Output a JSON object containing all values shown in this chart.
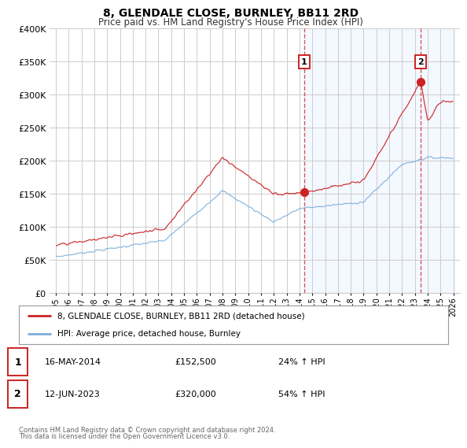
{
  "title": "8, GLENDALE CLOSE, BURNLEY, BB11 2RD",
  "subtitle": "Price paid vs. HM Land Registry's House Price Index (HPI)",
  "hpi_label": "HPI: Average price, detached house, Burnley",
  "property_label": "8, GLENDALE CLOSE, BURNLEY, BB11 2RD (detached house)",
  "red_color": "#cc2222",
  "blue_color": "#7aaedc",
  "blue_fill": "#ddeeff",
  "annotation1": {
    "num": "1",
    "date": "16-MAY-2014",
    "price": "£152,500",
    "change": "24% ↑ HPI"
  },
  "annotation2": {
    "num": "2",
    "date": "12-JUN-2023",
    "price": "£320,000",
    "change": "54% ↑ HPI"
  },
  "footnote1": "Contains HM Land Registry data © Crown copyright and database right 2024.",
  "footnote2": "This data is licensed under the Open Government Licence v3.0.",
  "ylim": [
    0,
    400000
  ],
  "yticks": [
    0,
    50000,
    100000,
    150000,
    200000,
    250000,
    300000,
    350000,
    400000
  ],
  "year_start": 1995,
  "year_end": 2026
}
